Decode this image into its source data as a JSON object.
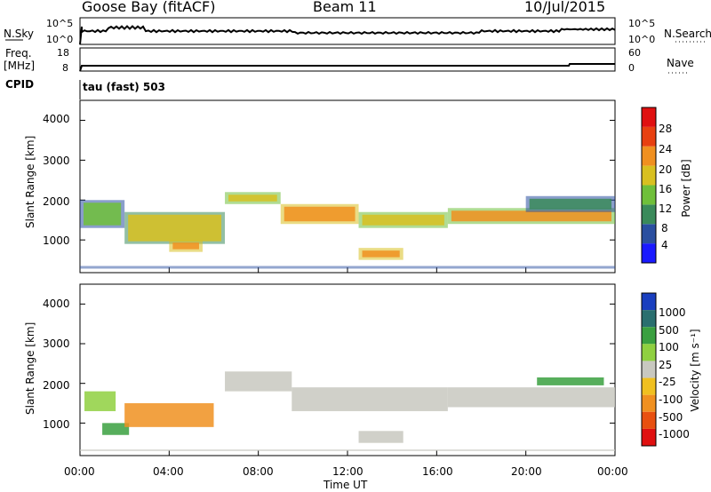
{
  "header": {
    "station": "Goose Bay (fitACF)",
    "beam": "Beam 11",
    "date": "10/Jul/2015"
  },
  "noise_panel": {
    "left_label": "N.Sky",
    "right_label": "N.Search",
    "tick_top": "10^5",
    "tick_bottom": "10^0"
  },
  "freq_panel": {
    "label_line1": "Freq.",
    "label_line2": "[MHz]",
    "ticks_left": [
      "18",
      "8"
    ],
    "ticks_right": [
      "60",
      "0"
    ],
    "right_label": "Nave"
  },
  "cpid": {
    "label": "CPID",
    "value": "tau (fast) 503"
  },
  "power_panel": {
    "ylabel": "Slant Range [km]",
    "yticks": [
      "4000",
      "3000",
      "2000",
      "1000"
    ],
    "cbar_label": "Power [dB]",
    "cbar_ticks": [
      "28",
      "24",
      "20",
      "16",
      "12",
      "8",
      "4"
    ],
    "cbar_colors": [
      "#1a1aff",
      "#2a4fa0",
      "#3a8a5a",
      "#6fbf3a",
      "#d8c020",
      "#f09020",
      "#e84010",
      "#e01010"
    ]
  },
  "velocity_panel": {
    "ylabel": "Slant Range [km]",
    "yticks": [
      "4000",
      "3000",
      "2000",
      "1000"
    ],
    "cbar_label": "Velocity [m s⁻¹]",
    "cbar_ticks": [
      "1000",
      "500",
      "100",
      "25",
      "-25",
      "-100",
      "-500",
      "-1000"
    ],
    "cbar_colors": [
      "#1a3fbf",
      "#2a6f6f",
      "#3aa040",
      "#8fd040",
      "#c8c8c0",
      "#f0c020",
      "#f09020",
      "#e85010",
      "#e01010"
    ]
  },
  "xaxis": {
    "label": "Time UT",
    "ticks": [
      "00:00",
      "04:00",
      "08:00",
      "12:00",
      "16:00",
      "20:00",
      "00:00"
    ]
  },
  "chart_data": {
    "type": "heatmap",
    "title": "Goose Bay (fitACF) Beam 11 10/Jul/2015",
    "xlabel": "Time UT",
    "xlim_hours": [
      0,
      24
    ],
    "ylabel": "Slant Range [km]",
    "ylim_km": [
      180,
      4500
    ],
    "power_bands": [
      {
        "t0": 0.0,
        "t1": 2.0,
        "r0": 1300,
        "r1": 2000,
        "db": 12
      },
      {
        "t0": 2.0,
        "t1": 6.5,
        "r0": 900,
        "r1": 1700,
        "db": 16
      },
      {
        "t0": 4.0,
        "t1": 5.5,
        "r0": 700,
        "r1": 1000,
        "db": 22
      },
      {
        "t0": 6.5,
        "t1": 9.0,
        "r0": 1900,
        "r1": 2200,
        "db": 18
      },
      {
        "t0": 9.0,
        "t1": 12.5,
        "r0": 1400,
        "r1": 1900,
        "db": 22
      },
      {
        "t0": 12.5,
        "t1": 16.5,
        "r0": 1300,
        "r1": 1700,
        "db": 18
      },
      {
        "t0": 12.5,
        "t1": 14.5,
        "r0": 500,
        "r1": 800,
        "db": 22
      },
      {
        "t0": 16.5,
        "t1": 24.0,
        "r0": 1400,
        "r1": 1800,
        "db": 20
      },
      {
        "t0": 20.0,
        "t1": 24.0,
        "r0": 1700,
        "r1": 2100,
        "db": 10
      }
    ],
    "velocity_bands": [
      {
        "t0": 0.2,
        "t1": 1.6,
        "r0": 1300,
        "r1": 1800,
        "vel": 50
      },
      {
        "t0": 1.0,
        "t1": 2.2,
        "r0": 700,
        "r1": 1000,
        "vel": 150
      },
      {
        "t0": 2.0,
        "t1": 6.0,
        "r0": 900,
        "r1": 1500,
        "vel": -300
      },
      {
        "t0": 6.5,
        "t1": 9.5,
        "r0": 1800,
        "r1": 2300,
        "vel": 0
      },
      {
        "t0": 9.5,
        "t1": 16.5,
        "r0": 1300,
        "r1": 1900,
        "vel": 0
      },
      {
        "t0": 12.5,
        "t1": 14.5,
        "r0": 500,
        "r1": 800,
        "vel": 0
      },
      {
        "t0": 16.5,
        "t1": 24.0,
        "r0": 1400,
        "r1": 1900,
        "vel": 0
      },
      {
        "t0": 20.5,
        "t1": 23.5,
        "r0": 1950,
        "r1": 2150,
        "vel": 150
      }
    ]
  }
}
